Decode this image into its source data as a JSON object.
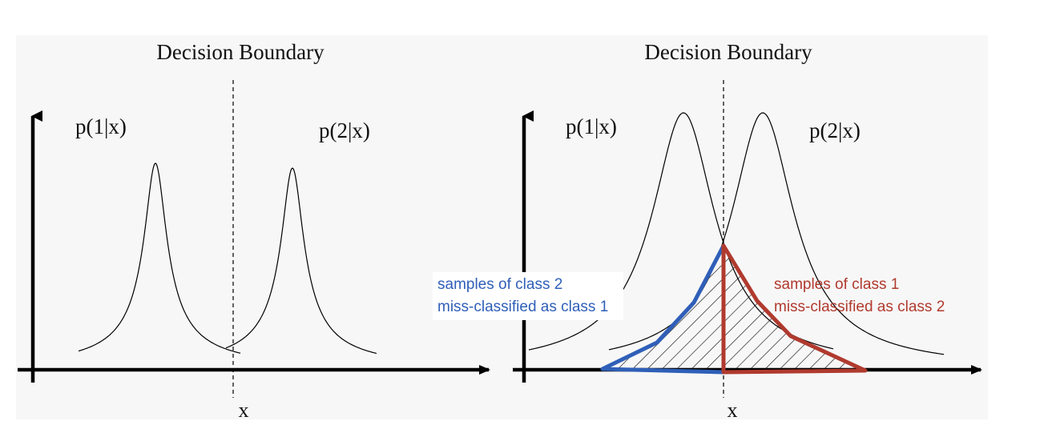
{
  "left_panel": {
    "title": "Decision Boundary",
    "label_class1": "p(1|x)",
    "label_class2": "p(2|x)",
    "x_axis_label": "x"
  },
  "right_panel": {
    "title": "Decision Boundary",
    "label_class1": "p(1|x)",
    "label_class2": "p(2|x)",
    "x_axis_label": "x",
    "annotation_left": {
      "line1": "samples of class 2",
      "line2": "miss-classified as class 1",
      "color": "#2f5fb8"
    },
    "annotation_right": {
      "line1": "samples of class 1",
      "line2": "miss-classified as class 2",
      "color": "#b03a2e"
    }
  }
}
